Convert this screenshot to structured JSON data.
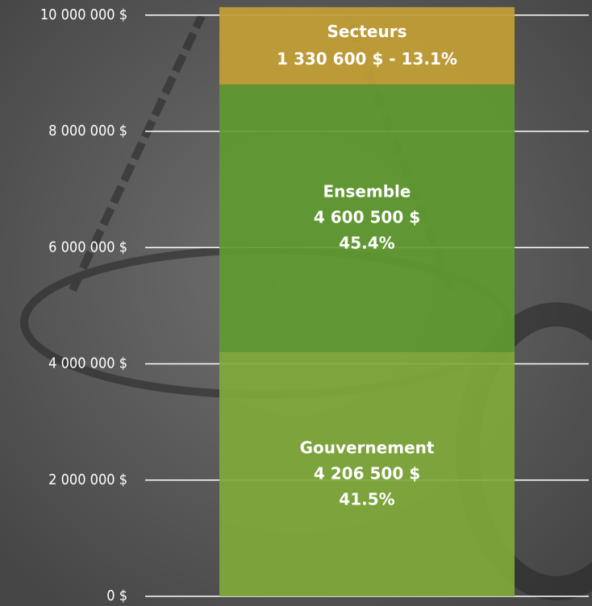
{
  "chart_data": {
    "type": "stacked-bar",
    "categories": [
      null
    ],
    "series": [
      {
        "name": "Gouvernement",
        "color": "#7fa93a",
        "values": [
          4206500
        ],
        "value_labels": [
          "4 206 500 $"
        ],
        "share_labels": [
          "41.5%"
        ]
      },
      {
        "name": "Ensemble",
        "color": "#5f9a2f",
        "values": [
          4600500
        ],
        "value_labels": [
          "4 600 500 $"
        ],
        "share_labels": [
          "45.4%"
        ]
      },
      {
        "name": "Secteurs",
        "color": "#c49f35",
        "values": [
          1330600
        ],
        "value_labels": [
          "1 330 600 $"
        ],
        "share_labels": [
          "13.1%"
        ],
        "label_separator": " - "
      }
    ],
    "ylim": [
      0,
      10260000
    ],
    "yticks": [
      {
        "value": 0,
        "label": "0 $"
      },
      {
        "value": 2000000,
        "label": "2 000 000 $"
      },
      {
        "value": 4000000,
        "label": "4 000 000 $"
      },
      {
        "value": 6000000,
        "label": "6 000 000 $"
      },
      {
        "value": 8000000,
        "label": "8 000 000 $"
      },
      {
        "value": 10000000,
        "label": "10 000 000 $"
      }
    ],
    "grid": true
  }
}
